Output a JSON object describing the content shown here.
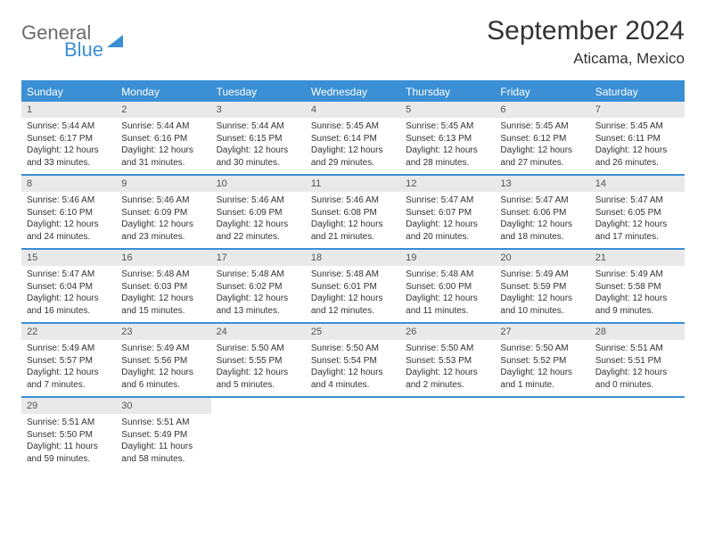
{
  "logo": {
    "general": "General",
    "blue": "Blue"
  },
  "title": "September 2024",
  "location": "Aticama, Mexico",
  "day_headers": [
    "Sunday",
    "Monday",
    "Tuesday",
    "Wednesday",
    "Thursday",
    "Friday",
    "Saturday"
  ],
  "colors": {
    "brand_blue": "#3b8fd4",
    "header_bg": "#3b8fd4",
    "daynum_bg": "#e9e9e9",
    "text": "#333333",
    "logo_gray": "#6b6b6b"
  },
  "weeks": [
    [
      {
        "n": "1",
        "sr": "Sunrise: 5:44 AM",
        "ss": "Sunset: 6:17 PM",
        "d1": "Daylight: 12 hours",
        "d2": "and 33 minutes."
      },
      {
        "n": "2",
        "sr": "Sunrise: 5:44 AM",
        "ss": "Sunset: 6:16 PM",
        "d1": "Daylight: 12 hours",
        "d2": "and 31 minutes."
      },
      {
        "n": "3",
        "sr": "Sunrise: 5:44 AM",
        "ss": "Sunset: 6:15 PM",
        "d1": "Daylight: 12 hours",
        "d2": "and 30 minutes."
      },
      {
        "n": "4",
        "sr": "Sunrise: 5:45 AM",
        "ss": "Sunset: 6:14 PM",
        "d1": "Daylight: 12 hours",
        "d2": "and 29 minutes."
      },
      {
        "n": "5",
        "sr": "Sunrise: 5:45 AM",
        "ss": "Sunset: 6:13 PM",
        "d1": "Daylight: 12 hours",
        "d2": "and 28 minutes."
      },
      {
        "n": "6",
        "sr": "Sunrise: 5:45 AM",
        "ss": "Sunset: 6:12 PM",
        "d1": "Daylight: 12 hours",
        "d2": "and 27 minutes."
      },
      {
        "n": "7",
        "sr": "Sunrise: 5:45 AM",
        "ss": "Sunset: 6:11 PM",
        "d1": "Daylight: 12 hours",
        "d2": "and 26 minutes."
      }
    ],
    [
      {
        "n": "8",
        "sr": "Sunrise: 5:46 AM",
        "ss": "Sunset: 6:10 PM",
        "d1": "Daylight: 12 hours",
        "d2": "and 24 minutes."
      },
      {
        "n": "9",
        "sr": "Sunrise: 5:46 AM",
        "ss": "Sunset: 6:09 PM",
        "d1": "Daylight: 12 hours",
        "d2": "and 23 minutes."
      },
      {
        "n": "10",
        "sr": "Sunrise: 5:46 AM",
        "ss": "Sunset: 6:09 PM",
        "d1": "Daylight: 12 hours",
        "d2": "and 22 minutes."
      },
      {
        "n": "11",
        "sr": "Sunrise: 5:46 AM",
        "ss": "Sunset: 6:08 PM",
        "d1": "Daylight: 12 hours",
        "d2": "and 21 minutes."
      },
      {
        "n": "12",
        "sr": "Sunrise: 5:47 AM",
        "ss": "Sunset: 6:07 PM",
        "d1": "Daylight: 12 hours",
        "d2": "and 20 minutes."
      },
      {
        "n": "13",
        "sr": "Sunrise: 5:47 AM",
        "ss": "Sunset: 6:06 PM",
        "d1": "Daylight: 12 hours",
        "d2": "and 18 minutes."
      },
      {
        "n": "14",
        "sr": "Sunrise: 5:47 AM",
        "ss": "Sunset: 6:05 PM",
        "d1": "Daylight: 12 hours",
        "d2": "and 17 minutes."
      }
    ],
    [
      {
        "n": "15",
        "sr": "Sunrise: 5:47 AM",
        "ss": "Sunset: 6:04 PM",
        "d1": "Daylight: 12 hours",
        "d2": "and 16 minutes."
      },
      {
        "n": "16",
        "sr": "Sunrise: 5:48 AM",
        "ss": "Sunset: 6:03 PM",
        "d1": "Daylight: 12 hours",
        "d2": "and 15 minutes."
      },
      {
        "n": "17",
        "sr": "Sunrise: 5:48 AM",
        "ss": "Sunset: 6:02 PM",
        "d1": "Daylight: 12 hours",
        "d2": "and 13 minutes."
      },
      {
        "n": "18",
        "sr": "Sunrise: 5:48 AM",
        "ss": "Sunset: 6:01 PM",
        "d1": "Daylight: 12 hours",
        "d2": "and 12 minutes."
      },
      {
        "n": "19",
        "sr": "Sunrise: 5:48 AM",
        "ss": "Sunset: 6:00 PM",
        "d1": "Daylight: 12 hours",
        "d2": "and 11 minutes."
      },
      {
        "n": "20",
        "sr": "Sunrise: 5:49 AM",
        "ss": "Sunset: 5:59 PM",
        "d1": "Daylight: 12 hours",
        "d2": "and 10 minutes."
      },
      {
        "n": "21",
        "sr": "Sunrise: 5:49 AM",
        "ss": "Sunset: 5:58 PM",
        "d1": "Daylight: 12 hours",
        "d2": "and 9 minutes."
      }
    ],
    [
      {
        "n": "22",
        "sr": "Sunrise: 5:49 AM",
        "ss": "Sunset: 5:57 PM",
        "d1": "Daylight: 12 hours",
        "d2": "and 7 minutes."
      },
      {
        "n": "23",
        "sr": "Sunrise: 5:49 AM",
        "ss": "Sunset: 5:56 PM",
        "d1": "Daylight: 12 hours",
        "d2": "and 6 minutes."
      },
      {
        "n": "24",
        "sr": "Sunrise: 5:50 AM",
        "ss": "Sunset: 5:55 PM",
        "d1": "Daylight: 12 hours",
        "d2": "and 5 minutes."
      },
      {
        "n": "25",
        "sr": "Sunrise: 5:50 AM",
        "ss": "Sunset: 5:54 PM",
        "d1": "Daylight: 12 hours",
        "d2": "and 4 minutes."
      },
      {
        "n": "26",
        "sr": "Sunrise: 5:50 AM",
        "ss": "Sunset: 5:53 PM",
        "d1": "Daylight: 12 hours",
        "d2": "and 2 minutes."
      },
      {
        "n": "27",
        "sr": "Sunrise: 5:50 AM",
        "ss": "Sunset: 5:52 PM",
        "d1": "Daylight: 12 hours",
        "d2": "and 1 minute."
      },
      {
        "n": "28",
        "sr": "Sunrise: 5:51 AM",
        "ss": "Sunset: 5:51 PM",
        "d1": "Daylight: 12 hours",
        "d2": "and 0 minutes."
      }
    ],
    [
      {
        "n": "29",
        "sr": "Sunrise: 5:51 AM",
        "ss": "Sunset: 5:50 PM",
        "d1": "Daylight: 11 hours",
        "d2": "and 59 minutes."
      },
      {
        "n": "30",
        "sr": "Sunrise: 5:51 AM",
        "ss": "Sunset: 5:49 PM",
        "d1": "Daylight: 11 hours",
        "d2": "and 58 minutes."
      },
      {
        "empty": true
      },
      {
        "empty": true
      },
      {
        "empty": true
      },
      {
        "empty": true
      },
      {
        "empty": true
      }
    ]
  ]
}
